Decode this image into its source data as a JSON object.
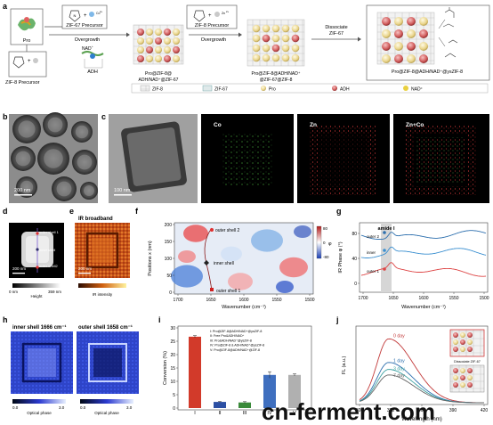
{
  "panel_a": {
    "letter": "a",
    "pro_label": "Pro",
    "zif67_precursor": "ZIF-67 Precursor",
    "co_ion": "Co",
    "co_charge": "2+",
    "zif8_precursor_top": "ZIF-8 Precursor",
    "zn_ion": "Zn",
    "zn_charge": "2+",
    "overgrowth_1": "Overgrowth",
    "overgrowth_2": "Overgrowth",
    "zif8_precursor_bottom": "ZIF-8 Precursor",
    "nad_label": "NAD",
    "nad_charge": "+",
    "adh_label": "ADH",
    "stage1_line1": "Pro@ZIF-8@",
    "stage1_line2": "ADH/NAD⁺@ZIF-67",
    "stage2_line1": "Pro@ZIF-8@ADH/NAD⁺",
    "stage2_line2": "@ZIF-67@ZIF-8",
    "dissociate_line1": "Dissociate",
    "dissociate_line2": "ZIF-67",
    "stage3_label": "Pro@ZIF-8@ADH/NAD⁺@ysZIF-8",
    "legend": [
      "ZIF-8",
      "ZIF-67",
      "Pro",
      "ADH",
      "NAD⁺"
    ]
  },
  "panel_b": {
    "letter": "b",
    "scale": "200 nm"
  },
  "panel_c": {
    "letter": "c",
    "scale": "100 nm",
    "maps": [
      "Co",
      "Zn",
      "Zn+Co"
    ]
  },
  "panel_d": {
    "letter": "d",
    "labels": [
      "outer shell 1",
      "inner shell",
      "outer shell2"
    ],
    "scale": "200 nm",
    "bar_min": "0 nm",
    "bar_max": "359 nm",
    "bar_title": "Height"
  },
  "panel_e": {
    "letter": "e",
    "title": "IR broadband",
    "scale": "200 nm",
    "bar_title": "IR intensity"
  },
  "panel_f": {
    "letter": "f",
    "ylabel": "Positions x (nm)",
    "xlabel": "Wavenumber (cm⁻¹)",
    "xticks": [
      "1700",
      "1650",
      "1600",
      "1550",
      "1500"
    ],
    "yticks": [
      "200",
      "150",
      "100",
      "50",
      "0"
    ],
    "labels": [
      "outer shell 2",
      "inner shell",
      "outer shell 1"
    ],
    "cbar_ticks": [
      "80",
      "0",
      "-80"
    ],
    "cbar_title": "φ"
  },
  "panel_g": {
    "letter": "g",
    "ylabel": "IR Phase φ (°)",
    "xlabel": "Wavenumber (cm⁻¹)",
    "xticks": [
      "1700",
      "1650",
      "1600",
      "1550",
      "1500"
    ],
    "yticks": [
      "80",
      "40",
      "0"
    ],
    "band_label": "amide I",
    "series_labels": [
      "outer 2",
      "inner",
      "outer 1"
    ]
  },
  "panel_h": {
    "letter": "h",
    "title_left": "inner shell 1666 cm⁻¹",
    "title_right": "outer shell 1658 cm⁻¹",
    "bar_min": "0.0",
    "bar_max": "3.0",
    "bar_title": "Optical phase"
  },
  "panel_i": {
    "letter": "i",
    "legend": [
      "I: Pro@ZIF-8@ADH/NAD⁺@ysZIF-8",
      "II: Free Pro&ADH/NAD⁺",
      "III: Pro&ADH/NAD⁺@ysZIF-8",
      "IV: Pro@ZIF-8 & ADH/NAD⁺@ysZIF-8",
      "V: Pro@ZIF-8@ADH/NAD⁺@ZIF-8"
    ],
    "ylabel": "Conversion (%)",
    "yticks": [
      "30",
      "25",
      "20",
      "15",
      "10",
      "5",
      "0"
    ]
  },
  "panel_j": {
    "letter": "j",
    "ylabel": "FL (a.u.)",
    "xlabel": "Wavelength (nm)",
    "xticks": [
      "300",
      "330",
      "360",
      "390",
      "420"
    ],
    "labels": [
      "0 day",
      "1 day",
      "3 day",
      "7 day"
    ],
    "inset_label": "Dissociate ZIF-67"
  },
  "watermark": "cn-ferment.com",
  "chart_data": [
    {
      "type": "bar",
      "categories": [
        "I",
        "II",
        "III",
        "IV",
        "V"
      ],
      "values": [
        26.7,
        2.3,
        2.1,
        12.4,
        12.4
      ],
      "errors": [
        0.4,
        0.2,
        0.3,
        1.2,
        0.4
      ],
      "colors": [
        "#d23a2a",
        "#2c4fa3",
        "#3a8a3a",
        "#3f6fbf",
        "#b0b0b0"
      ],
      "ylabel": "Conversion (%)",
      "ylim": [
        0,
        30
      ]
    },
    {
      "type": "line",
      "xlabel": "Wavelength (nm)",
      "ylabel": "FL (a.u.)",
      "xlim": [
        300,
        420
      ],
      "series": [
        {
          "name": "0 day",
          "color": "#c23a3a",
          "peak": 328,
          "height": 0.92
        },
        {
          "name": "1 day",
          "color": "#2d6fae",
          "peak": 328,
          "height": 0.58
        },
        {
          "name": "3 day",
          "color": "#3aa0a0",
          "peak": 328,
          "height": 0.48
        },
        {
          "name": "7 day",
          "color": "#666666",
          "peak": 328,
          "height": 0.4
        }
      ]
    },
    {
      "type": "line",
      "xlabel": "Wavenumber (cm⁻¹)",
      "ylabel": "IR Phase φ (°)",
      "xlim": [
        1700,
        1500
      ],
      "series": [
        {
          "name": "outer 2",
          "color": "#2d6fae",
          "offset": 80
        },
        {
          "name": "inner",
          "color": "#3a8fd0",
          "offset": 40
        },
        {
          "name": "outer 1",
          "color": "#d44",
          "offset": 5
        }
      ]
    }
  ]
}
